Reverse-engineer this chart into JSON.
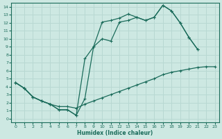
{
  "xlabel": "Humidex (Indice chaleur)",
  "background_color": "#cde8e2",
  "line_color": "#1a6b5a",
  "grid_color": "#b8d8d2",
  "xlim": [
    -0.5,
    23.5
  ],
  "ylim": [
    -0.5,
    14.5
  ],
  "xticks": [
    0,
    1,
    2,
    3,
    4,
    5,
    6,
    7,
    8,
    9,
    10,
    11,
    12,
    13,
    14,
    15,
    16,
    17,
    18,
    19,
    20,
    21,
    22,
    23
  ],
  "yticks": [
    0,
    1,
    2,
    3,
    4,
    5,
    6,
    7,
    8,
    9,
    10,
    11,
    12,
    13,
    14
  ],
  "line1_x": [
    0,
    1,
    2,
    3,
    4,
    5,
    6,
    7,
    8,
    9,
    10,
    11,
    12,
    13,
    14,
    15,
    16,
    17,
    18,
    19,
    20,
    21
  ],
  "line1_y": [
    4.5,
    3.8,
    2.7,
    2.2,
    1.8,
    1.1,
    1.1,
    0.4,
    7.5,
    9.0,
    12.1,
    12.3,
    12.6,
    13.1,
    12.7,
    12.3,
    12.7,
    14.2,
    13.5,
    12.0,
    10.2,
    8.7
  ],
  "line2_x": [
    0,
    1,
    2,
    3,
    4,
    5,
    6,
    7,
    8,
    9,
    10,
    11,
    12,
    13,
    14,
    15,
    16,
    17,
    18,
    19,
    20,
    21
  ],
  "line2_y": [
    4.5,
    3.8,
    2.7,
    2.2,
    1.8,
    1.1,
    1.1,
    0.4,
    2.5,
    9.0,
    10.0,
    9.7,
    12.1,
    12.3,
    12.7,
    12.3,
    12.7,
    14.2,
    13.5,
    12.0,
    10.2,
    8.7
  ],
  "line3_x": [
    0,
    1,
    2,
    3,
    4,
    5,
    6,
    7,
    8,
    9,
    10,
    11,
    12,
    13,
    14,
    15,
    16,
    17,
    18,
    19,
    20,
    21,
    22,
    23
  ],
  "line3_y": [
    4.5,
    3.8,
    2.7,
    2.2,
    1.8,
    1.5,
    1.5,
    1.3,
    1.8,
    2.2,
    2.6,
    3.0,
    3.4,
    3.8,
    4.2,
    4.6,
    5.0,
    5.5,
    5.8,
    6.0,
    6.2,
    6.4,
    6.5,
    6.5
  ]
}
